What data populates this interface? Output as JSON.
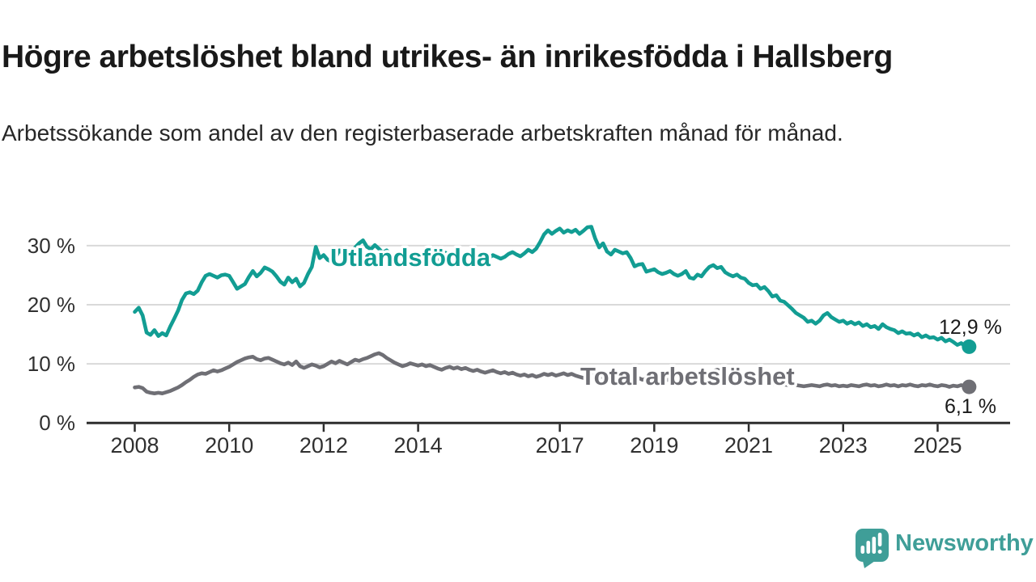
{
  "header": {
    "title": "Högre arbetslöshet bland utrikes- än inrikesfödda i Hallsberg",
    "subtitle": "Arbetssökande som andel av den registerbaserade arbetskraften månad för månad."
  },
  "footer": {
    "brand": "Newsworthy",
    "brand_color": "#3f9e98"
  },
  "chart_data": {
    "type": "line",
    "title": "Högre arbetslöshet bland utrikes- än inrikesfödda i Hallsberg",
    "xlabel": "",
    "ylabel": "",
    "unit": "%",
    "frequency": "monthly",
    "x_start": "2008-01",
    "x_end": "2025-09",
    "ylim": [
      0,
      34.5
    ],
    "grid": "horizontal",
    "grid_color": "#d9d9d9",
    "axis_color": "#2d2d2d",
    "text_color": "#303030",
    "yticks": [
      0,
      10,
      20,
      30
    ],
    "ytick_labels": [
      "0 %",
      "10 %",
      "20 %",
      "30 %"
    ],
    "xticks": [
      2008,
      2010,
      2012,
      2014,
      2017,
      2019,
      2021,
      2023,
      2025
    ],
    "xtick_labels": [
      "2008",
      "2010",
      "2012",
      "2014",
      "2017",
      "2019",
      "2021",
      "2023",
      "2025"
    ],
    "series": [
      {
        "name": "Utlandsfödda",
        "color": "#129d93",
        "end_label": "12,9 %",
        "end_value": 12.9,
        "values": [
          18.8,
          19.5,
          18.2,
          15.3,
          14.9,
          15.7,
          14.7,
          15.2,
          14.8,
          16.3,
          17.6,
          19.0,
          20.8,
          21.9,
          22.1,
          21.8,
          22.4,
          23.8,
          24.9,
          25.2,
          24.9,
          24.6,
          25.0,
          25.1,
          24.9,
          23.8,
          22.7,
          23.1,
          23.5,
          24.7,
          25.7,
          24.8,
          25.4,
          26.3,
          26.0,
          25.6,
          24.8,
          23.9,
          23.4,
          24.6,
          23.8,
          24.4,
          23.1,
          23.7,
          25.2,
          26.4,
          29.8,
          27.9,
          28.4,
          27.6,
          27.3,
          28.0,
          29.2,
          28.6,
          28.1,
          28.9,
          29.7,
          30.4,
          30.9,
          29.8,
          29.4,
          30.1,
          29.5,
          28.8,
          29.2,
          28.6,
          28.3,
          28.8,
          28.2,
          28.5,
          28.1,
          27.8,
          28.3,
          28.7,
          28.2,
          28.5,
          28.0,
          27.7,
          28.2,
          28.8,
          28.4,
          28.1,
          28.5,
          28.2,
          28.5,
          28.1,
          27.8,
          28.3,
          28.7,
          28.3,
          27.9,
          28.4,
          28.1,
          27.8,
          28.1,
          28.6,
          28.9,
          28.5,
          28.2,
          28.7,
          29.3,
          28.9,
          29.5,
          30.6,
          31.9,
          32.6,
          32.0,
          32.5,
          32.9,
          32.2,
          32.6,
          32.3,
          32.7,
          32.0,
          32.5,
          33.1,
          33.2,
          31.2,
          29.7,
          30.4,
          29.0,
          28.5,
          29.3,
          29.0,
          28.7,
          28.9,
          27.9,
          26.5,
          26.8,
          26.9,
          25.6,
          25.8,
          26.0,
          25.5,
          25.2,
          25.4,
          25.7,
          25.2,
          24.9,
          25.2,
          25.7,
          24.6,
          24.4,
          25.1,
          24.8,
          25.7,
          26.4,
          26.7,
          26.2,
          26.4,
          25.5,
          25.1,
          24.8,
          25.1,
          24.6,
          24.4,
          23.7,
          23.3,
          23.4,
          22.7,
          23.0,
          22.3,
          21.4,
          21.6,
          20.7,
          20.5,
          19.9,
          19.3,
          18.6,
          18.2,
          17.8,
          17.1,
          17.3,
          16.8,
          17.3,
          18.2,
          18.6,
          17.9,
          17.5,
          17.1,
          17.3,
          16.8,
          17.1,
          16.7,
          17.0,
          16.4,
          16.7,
          16.2,
          16.4,
          15.9,
          16.7,
          16.2,
          15.9,
          15.7,
          15.2,
          15.5,
          15.1,
          15.2,
          14.8,
          15.1,
          14.5,
          14.8,
          14.4,
          14.5,
          14.1,
          14.4,
          13.8,
          14.1,
          13.7,
          13.2,
          13.5,
          13.0,
          12.9
        ]
      },
      {
        "name": "Total arbetslöshet",
        "color": "#6f6f75",
        "end_label": "6,1 %",
        "end_value": 6.1,
        "values": [
          6.0,
          6.1,
          5.9,
          5.3,
          5.1,
          5.0,
          5.1,
          5.0,
          5.2,
          5.4,
          5.7,
          6.0,
          6.4,
          6.9,
          7.3,
          7.8,
          8.2,
          8.4,
          8.3,
          8.6,
          8.9,
          8.7,
          8.9,
          9.2,
          9.5,
          9.9,
          10.3,
          10.6,
          10.9,
          11.1,
          11.2,
          10.8,
          10.6,
          10.9,
          11.0,
          10.7,
          10.4,
          10.1,
          9.9,
          10.2,
          9.8,
          10.4,
          9.6,
          9.3,
          9.6,
          9.9,
          9.7,
          9.4,
          9.6,
          10.0,
          10.4,
          10.1,
          10.5,
          10.2,
          9.9,
          10.3,
          10.7,
          10.5,
          10.8,
          11.0,
          11.3,
          11.6,
          11.8,
          11.5,
          11.0,
          10.6,
          10.2,
          9.9,
          9.6,
          9.8,
          10.1,
          9.9,
          9.7,
          9.9,
          9.6,
          9.8,
          9.5,
          9.2,
          9.0,
          9.3,
          9.5,
          9.2,
          9.4,
          9.1,
          9.3,
          9.0,
          8.8,
          9.0,
          8.7,
          8.5,
          8.7,
          8.9,
          8.6,
          8.4,
          8.6,
          8.3,
          8.5,
          8.2,
          8.0,
          8.2,
          7.9,
          8.1,
          7.8,
          8.0,
          8.3,
          8.1,
          8.3,
          8.0,
          8.2,
          8.4,
          8.1,
          8.3,
          8.0,
          7.8,
          7.6,
          7.9,
          8.1,
          7.8,
          8.0,
          7.7,
          7.5,
          7.7,
          7.4,
          7.6,
          7.3,
          7.5,
          7.2,
          7.4,
          7.6,
          7.3,
          7.5,
          7.2,
          7.4,
          7.2,
          7.0,
          7.2,
          7.4,
          7.1,
          7.3,
          7.5,
          7.2,
          7.4,
          7.1,
          7.3,
          7.6,
          7.9,
          8.4,
          8.8,
          9.0,
          8.8,
          8.6,
          8.4,
          8.2,
          8.0,
          7.8,
          7.6,
          7.4,
          7.2,
          7.0,
          6.9,
          6.8,
          6.7,
          6.6,
          6.5,
          6.4,
          6.5,
          6.4,
          6.3,
          6.4,
          6.3,
          6.2,
          6.3,
          6.4,
          6.3,
          6.2,
          6.4,
          6.5,
          6.3,
          6.4,
          6.2,
          6.3,
          6.2,
          6.4,
          6.3,
          6.2,
          6.4,
          6.5,
          6.3,
          6.4,
          6.2,
          6.3,
          6.5,
          6.3,
          6.4,
          6.2,
          6.4,
          6.3,
          6.5,
          6.3,
          6.2,
          6.4,
          6.3,
          6.5,
          6.3,
          6.2,
          6.4,
          6.3,
          6.1,
          6.3,
          6.2,
          6.4,
          6.2,
          6.1
        ]
      }
    ]
  }
}
